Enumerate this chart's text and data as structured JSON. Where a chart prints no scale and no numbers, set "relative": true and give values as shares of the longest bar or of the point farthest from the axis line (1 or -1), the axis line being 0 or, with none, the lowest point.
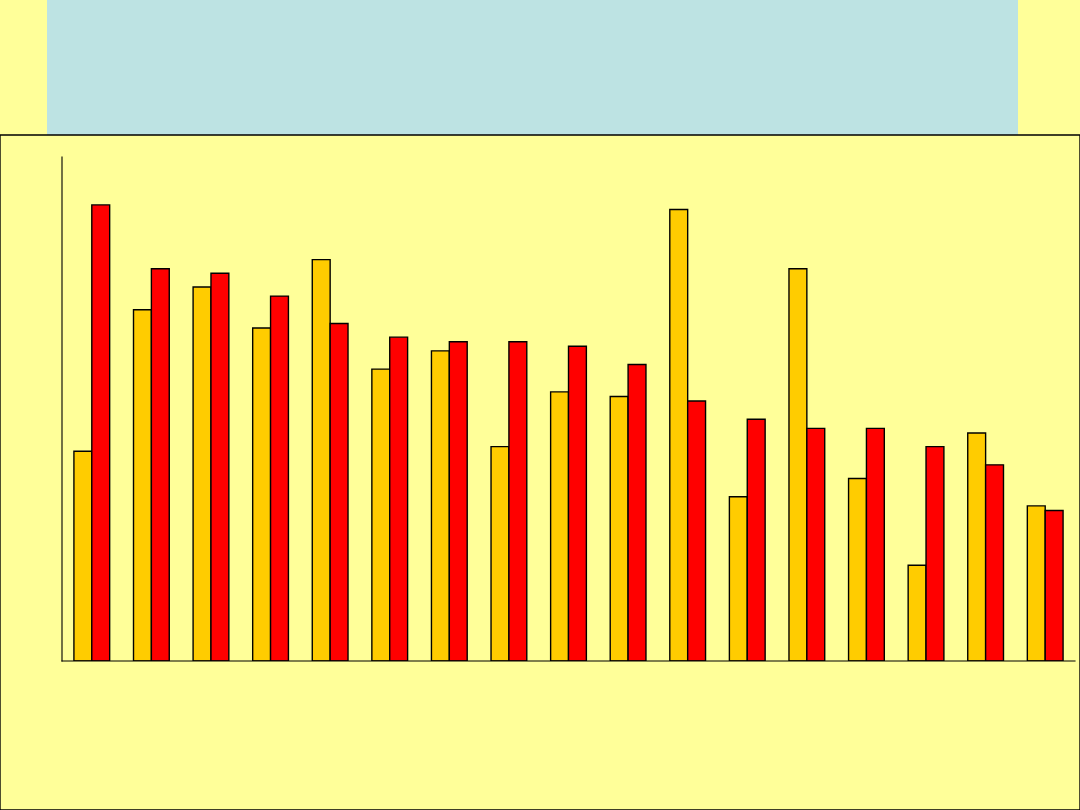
{
  "chart_data": {
    "type": "bar",
    "relative": true,
    "categories": [
      null,
      null,
      null,
      null,
      null,
      null,
      null,
      null,
      null,
      null,
      null,
      null,
      null,
      null,
      null,
      null,
      null
    ],
    "series": [
      {
        "color": "#ffcc00",
        "values": [
          0.46,
          0.77,
          0.82,
          0.73,
          0.88,
          0.64,
          0.68,
          0.47,
          0.59,
          0.58,
          0.99,
          0.36,
          0.86,
          0.4,
          0.21,
          0.5,
          0.34
        ]
      },
      {
        "color": "#ff0000",
        "values": [
          1,
          0.86,
          0.85,
          0.8,
          0.74,
          0.71,
          0.7,
          0.7,
          0.69,
          0.65,
          0.57,
          0.53,
          0.51,
          0.51,
          0.47,
          0.43,
          0.33
        ]
      }
    ],
    "grid": false
  }
}
